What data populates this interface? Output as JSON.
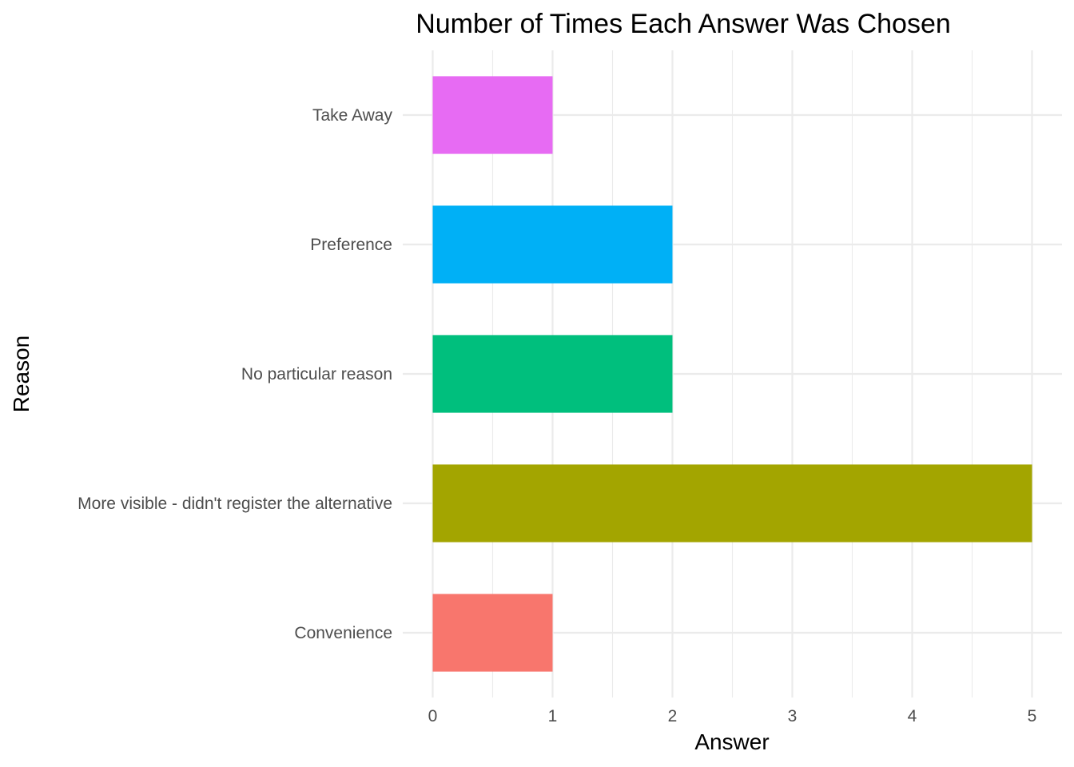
{
  "chart_data": {
    "type": "bar",
    "orientation": "horizontal",
    "title": "Number of Times Each Answer Was Chosen",
    "xlabel": "Answer",
    "ylabel": "Reason",
    "categories": [
      "Convenience",
      "More visible - didn't register the alternative",
      "No particular reason",
      "Preference",
      "Take Away"
    ],
    "values": [
      1,
      5,
      2,
      2,
      1
    ],
    "colors": [
      "#F8766D",
      "#A3A500",
      "#00BF7D",
      "#00B0F6",
      "#E76BF3"
    ],
    "xlim": [
      0,
      5
    ],
    "x_ticks": [
      "0",
      "1",
      "2",
      "3",
      "4",
      "5"
    ],
    "grid": true,
    "legend": "none"
  }
}
